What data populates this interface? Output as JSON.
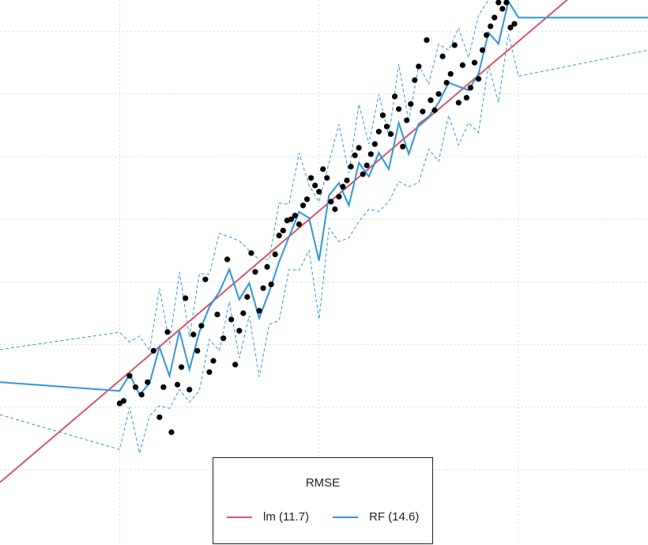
{
  "chart_data": {
    "type": "scatter",
    "title": "",
    "xlabel": "",
    "ylabel": "",
    "xlim": [
      -1.6,
      1.65
    ],
    "ylim": [
      -1.6,
      2.75
    ],
    "grid": true,
    "legend": {
      "title": "RMSE",
      "position": "bottom",
      "entries": [
        {
          "label": "lm (11.7)",
          "color": "#d6546a"
        },
        {
          "label": "RF (14.6)",
          "color": "#2e96db"
        }
      ]
    },
    "points": {
      "x": [
        -1.0,
        -0.95,
        -0.98,
        -0.92,
        -0.89,
        -0.86,
        -0.83,
        -0.8,
        -0.78,
        -0.76,
        -0.74,
        -0.71,
        -0.69,
        -0.67,
        -0.65,
        -0.63,
        -0.61,
        -0.59,
        -0.57,
        -0.55,
        -0.53,
        -0.51,
        -0.48,
        -0.46,
        -0.44,
        -0.42,
        -0.4,
        -0.38,
        -0.36,
        -0.34,
        -0.32,
        -0.3,
        -0.28,
        -0.26,
        -0.24,
        -0.22,
        -0.2,
        -0.18,
        -0.16,
        -0.14,
        -0.12,
        -0.1,
        -0.08,
        -0.06,
        -0.04,
        -0.02,
        0.0,
        0.02,
        0.04,
        0.06,
        0.08,
        0.1,
        0.12,
        0.14,
        0.16,
        0.18,
        0.2,
        0.22,
        0.24,
        0.26,
        0.28,
        0.3,
        0.32,
        0.34,
        0.36,
        0.38,
        0.4,
        0.42,
        0.44,
        0.46,
        0.48,
        0.5,
        0.52,
        0.54,
        0.56,
        0.58,
        0.6,
        0.62,
        0.64,
        0.66,
        0.68,
        0.7,
        0.72,
        0.74,
        0.76,
        0.78,
        0.8,
        0.82,
        0.84,
        0.86,
        0.88,
        0.9,
        0.92,
        0.94,
        0.96,
        0.98,
        1.0
      ],
      "y": [
        -0.47,
        -0.25,
        -0.45,
        -0.34,
        -0.4,
        -0.3,
        -0.05,
        -0.58,
        -0.34,
        0.1,
        -0.7,
        -0.32,
        -0.18,
        0.37,
        -0.36,
        0.08,
        -0.05,
        0.15,
        0.52,
        -0.22,
        -0.13,
        0.24,
        0.05,
        0.68,
        0.2,
        -0.16,
        0.11,
        0.25,
        0.38,
        0.73,
        0.58,
        0.27,
        0.45,
        0.62,
        0.48,
        0.72,
        0.87,
        0.91,
        0.99,
        1.0,
        1.03,
        0.96,
        1.11,
        1.16,
        1.33,
        1.27,
        1.22,
        1.4,
        1.33,
        1.14,
        1.08,
        1.18,
        1.26,
        1.31,
        1.42,
        1.51,
        1.57,
        1.36,
        1.43,
        1.52,
        1.6,
        1.7,
        1.83,
        1.74,
        1.68,
        1.98,
        1.88,
        1.58,
        1.79,
        1.92,
        2.11,
        2.22,
        1.86,
        2.43,
        1.95,
        1.87,
        2.0,
        2.3,
        2.09,
        2.16,
        2.39,
        1.93,
        2.23,
        1.97,
        2.05,
        2.25,
        2.12,
        2.35,
        2.47,
        2.54,
        2.61,
        2.73,
        2.68,
        2.73,
        2.53,
        2.56,
        2.88
      ]
    },
    "series": [
      {
        "name": "lm (11.7)",
        "type": "line",
        "x": [
          -1.6,
          1.65
        ],
        "y": [
          -1.1,
          3.3
        ]
      },
      {
        "name": "RF (14.6)",
        "type": "step-line",
        "x": [
          -1.0,
          -0.95,
          -0.9,
          -0.85,
          -0.8,
          -0.75,
          -0.7,
          -0.65,
          -0.6,
          -0.55,
          -0.5,
          -0.45,
          -0.4,
          -0.35,
          -0.3,
          -0.25,
          -0.2,
          -0.15,
          -0.1,
          -0.05,
          0.0,
          0.05,
          0.1,
          0.15,
          0.2,
          0.25,
          0.3,
          0.35,
          0.4,
          0.45,
          0.5,
          0.55,
          0.6,
          0.65,
          0.7,
          0.75,
          0.8,
          0.85,
          0.9,
          0.95,
          1.0
        ],
        "y": [
          -0.37,
          -0.24,
          -0.4,
          -0.31,
          -0.02,
          -0.25,
          0.11,
          -0.2,
          0.1,
          0.3,
          0.42,
          0.6,
          0.36,
          0.49,
          0.21,
          0.42,
          0.66,
          0.86,
          1.06,
          1.01,
          0.67,
          1.19,
          1.29,
          1.11,
          1.45,
          1.34,
          1.53,
          1.4,
          1.77,
          1.52,
          1.76,
          1.82,
          1.93,
          2.09,
          2.06,
          2.03,
          2.16,
          2.49,
          2.4,
          2.74,
          2.61
        ]
      }
    ],
    "rf_before": -0.3,
    "rf_after": 2.61,
    "rf_band_width": 0.26
  }
}
